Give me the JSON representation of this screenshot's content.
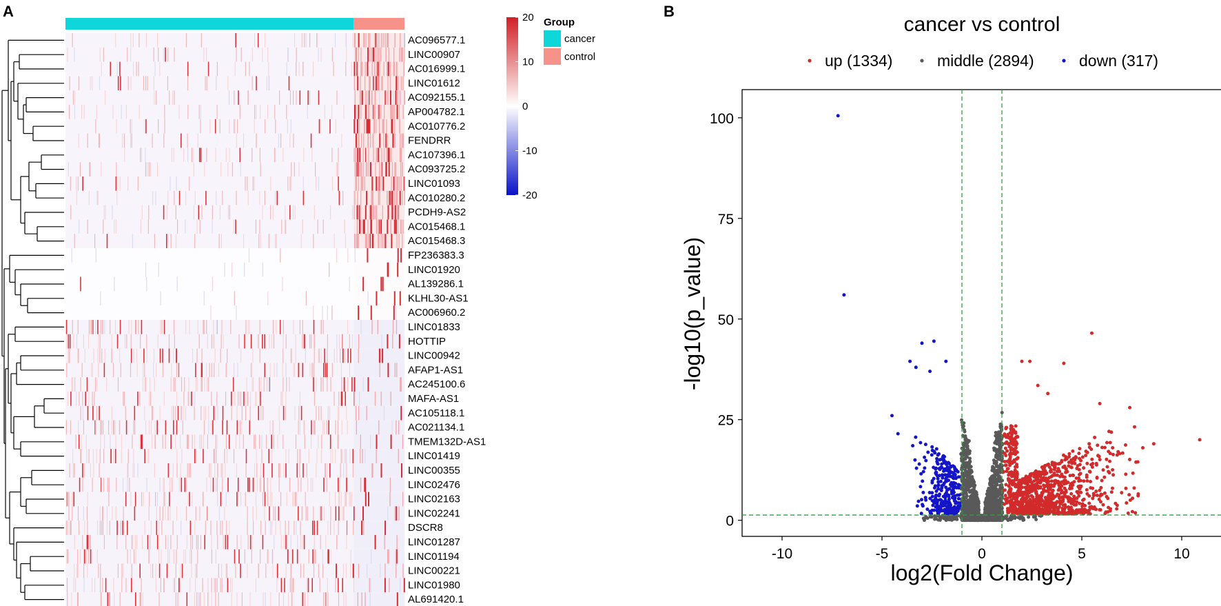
{
  "panels": {
    "a_label": "A",
    "b_label": "B"
  },
  "colors": {
    "cancer": "#0fd7d9",
    "control": "#f69289",
    "scale_high": "#d11f26",
    "scale_mid": "#ffffff",
    "scale_low": "#0a12c8",
    "up": "#d22b2b",
    "middle": "#595959",
    "down": "#1414c8",
    "threshold_line": "#2aa53a"
  },
  "chart_data": [
    {
      "type": "heatmap",
      "title": "",
      "group_legend": {
        "title": "Group",
        "entries": [
          "cancer",
          "control"
        ]
      },
      "color_scale": {
        "ticks": [
          20,
          10,
          0,
          -10,
          -20
        ],
        "tick_labels": [
          "20",
          "10",
          "0",
          "-10",
          "-20"
        ],
        "range": [
          -20,
          20
        ]
      },
      "group_split": {
        "cancer_fraction": 0.85,
        "control_fraction": 0.15
      },
      "rows": [
        "AC096577.1",
        "LINC00907",
        "AC016999.1",
        "LINC01612",
        "AC092155.1",
        "AP004782.1",
        "AC010776.2",
        "FENDRR",
        "AC107396.1",
        "AC093725.2",
        "LINC01093",
        "AC010280.2",
        "PCDH9-AS2",
        "AC015468.1",
        "AC015468.3",
        "FP236383.3",
        "LINC01920",
        "AL139286.1",
        "KLHL30-AS1",
        "AC006960.2",
        "LINC01833",
        "HOTTIP",
        "LINC00942",
        "AFAP1-AS1",
        "AC245100.6",
        "MAFA-AS1",
        "AC105118.1",
        "AC021134.1",
        "TMEM132D-AS1",
        "LINC01419",
        "LINC00355",
        "LINC02476",
        "LINC02163",
        "LINC02241",
        "DSCR8",
        "LINC01287",
        "LINC01194",
        "LINC00221",
        "LINC01980",
        "AL691420.1"
      ],
      "row_clusters": {
        "down_in_cancer": [
          0,
          14
        ],
        "control_specific": [
          15,
          19
        ],
        "up_in_cancer": [
          20,
          39
        ]
      }
    },
    {
      "type": "scatter",
      "title": "cancer vs control",
      "xlabel": "log2(Fold Change)",
      "ylabel": "-log10(p_value)",
      "xlim": [
        -12,
        12
      ],
      "ylim": [
        -4,
        107
      ],
      "x_ticks": [
        -10,
        -5,
        0,
        5,
        10
      ],
      "x_tick_labels": [
        "-10",
        "-5",
        "0",
        "5",
        "10"
      ],
      "y_ticks": [
        0,
        25,
        50,
        75,
        100
      ],
      "y_tick_labels": [
        "0",
        "25",
        "50",
        "75",
        "100"
      ],
      "thresholds": {
        "x": [
          -1,
          1
        ],
        "y": 1.3
      },
      "legend": [
        {
          "key": "up",
          "label": "up (1334)",
          "count": 1334
        },
        {
          "key": "middle",
          "label": "middle (2894)",
          "count": 2894
        },
        {
          "key": "down",
          "label": "down (317)",
          "count": 317
        }
      ],
      "highlight_points": [
        {
          "x": -7.2,
          "y": 100.5,
          "group": "down"
        },
        {
          "x": -6.9,
          "y": 56.0,
          "group": "down"
        },
        {
          "x": -2.4,
          "y": 44.5,
          "group": "down"
        },
        {
          "x": -3.0,
          "y": 44.0,
          "group": "down"
        },
        {
          "x": -1.8,
          "y": 39.5,
          "group": "down"
        },
        {
          "x": -3.6,
          "y": 39.5,
          "group": "down"
        },
        {
          "x": -3.3,
          "y": 38.0,
          "group": "down"
        },
        {
          "x": -2.6,
          "y": 37.0,
          "group": "down"
        },
        {
          "x": -4.5,
          "y": 26.0,
          "group": "down"
        },
        {
          "x": -4.2,
          "y": 21.5,
          "group": "down"
        },
        {
          "x": 5.5,
          "y": 46.5,
          "group": "up"
        },
        {
          "x": 2.0,
          "y": 39.5,
          "group": "up"
        },
        {
          "x": 2.4,
          "y": 39.5,
          "group": "up"
        },
        {
          "x": 4.1,
          "y": 39.0,
          "group": "up"
        },
        {
          "x": 2.8,
          "y": 33.5,
          "group": "up"
        },
        {
          "x": 3.3,
          "y": 31.5,
          "group": "up"
        },
        {
          "x": 5.9,
          "y": 29.0,
          "group": "up"
        },
        {
          "x": 7.4,
          "y": 28.0,
          "group": "up"
        },
        {
          "x": 10.9,
          "y": 20.0,
          "group": "up"
        },
        {
          "x": 8.6,
          "y": 19.0,
          "group": "up"
        },
        {
          "x": 7.8,
          "y": 14.5,
          "group": "up"
        }
      ]
    }
  ]
}
